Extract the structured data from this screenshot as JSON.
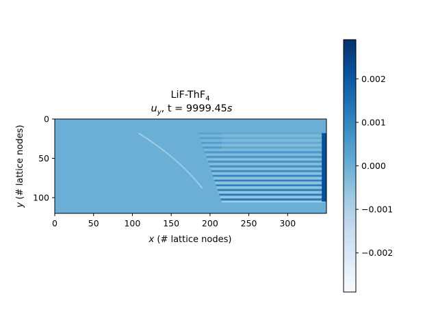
{
  "chart_data": {
    "type": "heatmap",
    "title_line1_main": "LiF-ThF",
    "title_line1_sub": "4",
    "title_line2_var": "u",
    "title_line2_var_sub": "y",
    "title_line2_rest": ", t = 9999.45",
    "title_line2_unit": "s",
    "xlabel_var": "x",
    "xlabel_rest": " (# lattice nodes)",
    "ylabel_var": "y",
    "ylabel_rest": " (# lattice nodes)",
    "x_range": [
      0,
      350
    ],
    "y_range": [
      0,
      120
    ],
    "x_ticks": [
      0,
      50,
      100,
      150,
      200,
      250,
      300
    ],
    "y_ticks": [
      0,
      50,
      100
    ],
    "x_tick_labels": [
      "0",
      "50",
      "100",
      "150",
      "200",
      "250",
      "300"
    ],
    "y_tick_labels": [
      "0",
      "50",
      "100"
    ],
    "colormap": "Blues",
    "colorbar_range": [
      -0.0029,
      0.0029
    ],
    "colorbar_ticks": [
      -0.002,
      -0.001,
      0.0,
      0.001,
      0.002
    ],
    "colorbar_tick_labels": [
      "−0.002",
      "−0.001",
      "0.000",
      "0.001",
      "0.002"
    ],
    "background_value": 0.0,
    "features": {
      "diagonal_streak": {
        "x_start": 108,
        "y_start": 18,
        "x_end": 190,
        "y_end": 88,
        "value_min": -0.0008
      },
      "striped_region": {
        "x_start": 185,
        "x_end": 348,
        "y_start": 18,
        "y_end": 105,
        "stripe_count": 30
      },
      "right_edge_band": {
        "x_start": 344,
        "x_end": 350,
        "value": 0.0022
      }
    }
  }
}
